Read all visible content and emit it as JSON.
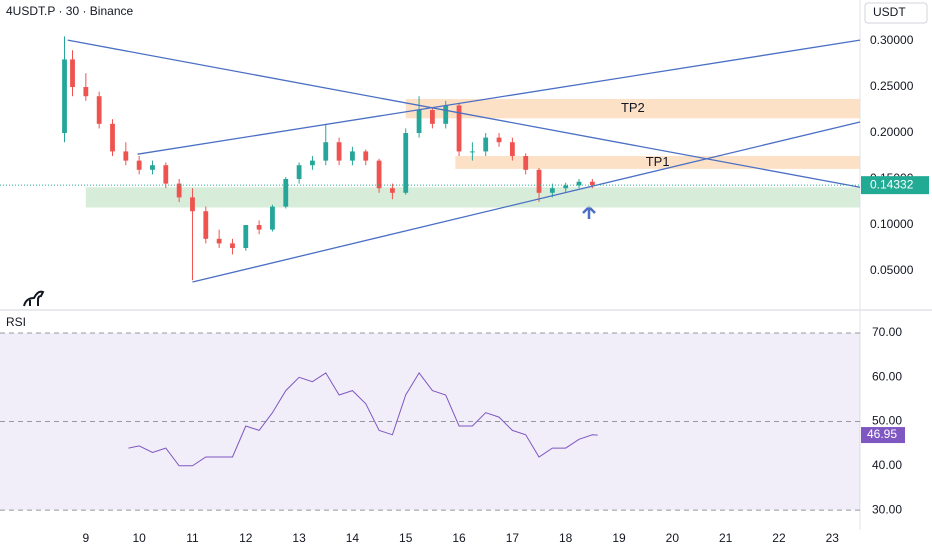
{
  "chart_data": {
    "type": "candlestick",
    "title": "4USDT.P · 30 · Binance",
    "currency": "USDT",
    "xlim": [
      7.39,
      23.52
    ],
    "xticks": [
      9,
      10,
      11,
      12,
      13,
      14,
      15,
      16,
      17,
      18,
      19,
      20,
      21,
      22,
      23
    ],
    "ylim": [
      0.0076,
      0.3446
    ],
    "yticks": [
      {
        "value": 0.05,
        "label": "0.05000"
      },
      {
        "value": 0.1,
        "label": "0.10000"
      },
      {
        "value": 0.15,
        "label": "0.15000"
      },
      {
        "value": 0.2,
        "label": "0.20000"
      },
      {
        "value": 0.25,
        "label": "0.25000"
      },
      {
        "value": 0.3,
        "label": "0.30000"
      }
    ],
    "up_color": "#26a69a",
    "down_color": "#ef5350",
    "x": [
      8.6,
      8.75,
      9.0,
      9.25,
      9.5,
      9.75,
      10.0,
      10.25,
      10.5,
      10.75,
      11.0,
      11.25,
      11.5,
      11.75,
      12.0,
      12.25,
      12.5,
      12.75,
      13.0,
      13.25,
      13.5,
      13.75,
      14.0,
      14.25,
      14.5,
      14.75,
      15.0,
      15.25,
      15.5,
      15.75,
      16.0,
      16.25,
      16.5,
      16.75,
      17.0,
      17.25,
      17.5,
      17.75,
      18.0,
      18.25,
      18.5
    ],
    "open": [
      0.2,
      0.28,
      0.25,
      0.24,
      0.21,
      0.18,
      0.17,
      0.16,
      0.165,
      0.145,
      0.13,
      0.115,
      0.085,
      0.08,
      0.075,
      0.1,
      0.095,
      0.12,
      0.15,
      0.165,
      0.17,
      0.19,
      0.17,
      0.18,
      0.17,
      0.14,
      0.135,
      0.2,
      0.225,
      0.21,
      0.23,
      0.18,
      0.18,
      0.195,
      0.19,
      0.175,
      0.16,
      0.135,
      0.14,
      0.143,
      0.147
    ],
    "high": [
      0.305,
      0.29,
      0.265,
      0.245,
      0.215,
      0.19,
      0.175,
      0.17,
      0.168,
      0.15,
      0.14,
      0.12,
      0.095,
      0.085,
      0.1,
      0.105,
      0.122,
      0.152,
      0.168,
      0.175,
      0.21,
      0.195,
      0.185,
      0.182,
      0.172,
      0.145,
      0.205,
      0.24,
      0.228,
      0.235,
      0.232,
      0.19,
      0.2,
      0.2,
      0.195,
      0.178,
      0.162,
      0.145,
      0.146,
      0.15,
      0.15
    ],
    "low": [
      0.19,
      0.24,
      0.235,
      0.205,
      0.175,
      0.165,
      0.155,
      0.155,
      0.14,
      0.125,
      0.04,
      0.08,
      0.075,
      0.068,
      0.072,
      0.09,
      0.093,
      0.118,
      0.145,
      0.16,
      0.165,
      0.165,
      0.165,
      0.165,
      0.135,
      0.128,
      0.133,
      0.195,
      0.205,
      0.205,
      0.175,
      0.17,
      0.175,
      0.185,
      0.17,
      0.155,
      0.125,
      0.13,
      0.136,
      0.14,
      0.14
    ],
    "close": [
      0.28,
      0.25,
      0.24,
      0.21,
      0.18,
      0.17,
      0.16,
      0.165,
      0.145,
      0.13,
      0.115,
      0.085,
      0.08,
      0.075,
      0.1,
      0.095,
      0.12,
      0.15,
      0.165,
      0.17,
      0.19,
      0.17,
      0.18,
      0.17,
      0.14,
      0.135,
      0.2,
      0.225,
      0.21,
      0.23,
      0.18,
      0.18,
      0.195,
      0.19,
      0.175,
      0.16,
      0.135,
      0.14,
      0.143,
      0.147,
      0.14332
    ],
    "trendlines": [
      {
        "x": [
          8.66,
          23.52
        ],
        "y": [
          0.301,
          0.141
        ],
        "color": "#4a6fc4"
      },
      {
        "x": [
          11.0,
          23.52
        ],
        "y": [
          0.038,
          0.212
        ],
        "color": "#4a6fc4"
      },
      {
        "x": [
          9.97,
          23.52
        ],
        "y": [
          0.177,
          0.301
        ],
        "color": "#4a6fc4"
      }
    ],
    "zones": [
      {
        "label": "TP2",
        "x": [
          15.0,
          23.52
        ],
        "y": [
          0.216,
          0.237
        ],
        "color": "#fcd9b8"
      },
      {
        "label": "TP1",
        "x": [
          15.93,
          23.52
        ],
        "y": [
          0.161,
          0.175
        ],
        "color": "#fcd9b8"
      },
      {
        "x": [
          9.0,
          23.52
        ],
        "y": [
          0.119,
          0.141
        ],
        "color": "#cde8cf"
      }
    ],
    "last_price_color": "#22ab94",
    "rsi": {
      "name": "RSI",
      "color": "#7e57c2",
      "ylim": [
        25.5,
        75.2
      ],
      "yticks": [
        {
          "value": 30,
          "label": "30.00"
        },
        {
          "value": 40,
          "label": "40.00"
        },
        {
          "value": 50,
          "label": "50.00"
        },
        {
          "value": 60,
          "label": "60.00"
        },
        {
          "value": 70,
          "label": "70.00"
        }
      ],
      "bands": [
        30,
        50,
        70
      ],
      "x": [
        9.8,
        10.0,
        10.25,
        10.5,
        10.75,
        11.0,
        11.25,
        11.5,
        11.75,
        12.0,
        12.25,
        12.5,
        12.75,
        13.0,
        13.25,
        13.5,
        13.75,
        14.0,
        14.25,
        14.5,
        14.75,
        15.0,
        15.25,
        15.5,
        15.75,
        16.0,
        16.25,
        16.5,
        16.75,
        17.0,
        17.25,
        17.5,
        17.75,
        18.0,
        18.25,
        18.5,
        18.6
      ],
      "values": [
        44,
        44.5,
        43,
        44,
        40,
        40,
        42,
        42,
        42,
        49,
        48,
        52,
        57,
        60,
        59,
        61,
        56,
        57,
        54,
        48,
        47,
        56,
        61,
        57,
        56,
        49,
        49,
        52,
        51,
        48,
        47,
        42,
        44,
        44,
        46,
        47,
        46.95
      ]
    }
  }
}
